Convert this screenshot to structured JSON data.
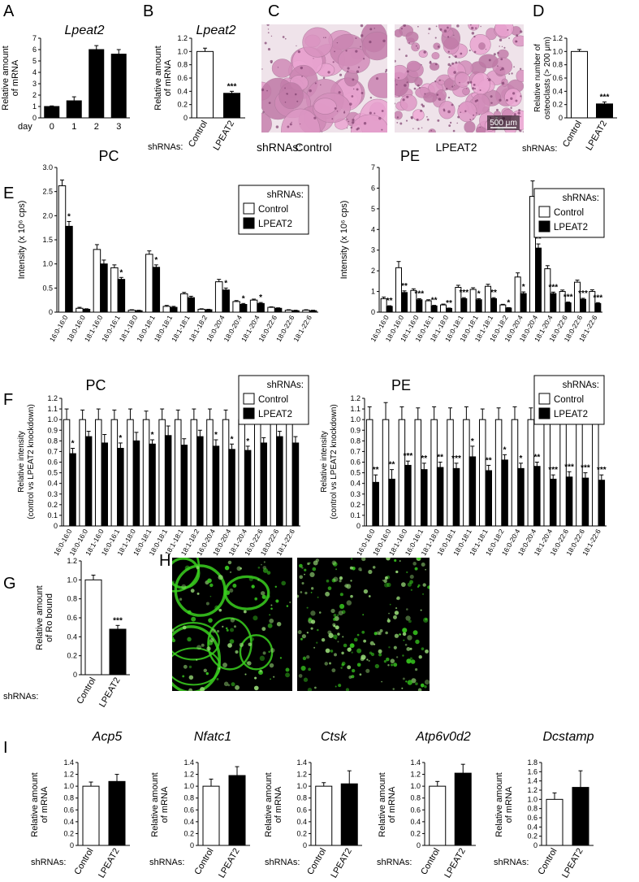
{
  "labels": {
    "panel_letters": {
      "A": "A",
      "B": "B",
      "C": "C",
      "D": "D",
      "E": "E",
      "F": "F",
      "G": "G",
      "H": "H",
      "I": "I"
    },
    "shrnas": "shRNAs:",
    "day": "day",
    "control": "Control",
    "lpeat2": "LPEAT2",
    "scale_bar": "500 μm"
  },
  "colors": {
    "control": "#ffffff",
    "lpeat2": "#000000",
    "stain": "#c98fb5",
    "green": "#39d01f"
  },
  "images": {
    "C": {
      "kind": "histology-staining",
      "panels": [
        "Control",
        "LPEAT2"
      ]
    },
    "H": {
      "kind": "fluorescence-green",
      "panels": [
        "left",
        "right"
      ]
    }
  },
  "chart_data": [
    {
      "id": "A",
      "type": "bar",
      "title": "Lpeat2",
      "title_italic": true,
      "ylabel": [
        "Relative amount",
        "of mRNA"
      ],
      "ylim": [
        0,
        7
      ],
      "yticks": [
        "0",
        "1",
        "2",
        "3",
        "4",
        "5",
        "6",
        "7"
      ],
      "xprefix": "day",
      "categories": [
        "0",
        "1",
        "2",
        "3"
      ],
      "series": [
        {
          "values": [
            1.0,
            1.5,
            6.0,
            5.6
          ],
          "errors": [
            0.05,
            0.35,
            0.35,
            0.4
          ],
          "color": "#000000"
        }
      ]
    },
    {
      "id": "B",
      "type": "bar",
      "title": "Lpeat2",
      "title_italic": true,
      "ylabel": [
        "Relative amount",
        "of mRNA"
      ],
      "ylim": [
        0,
        1.2
      ],
      "yticks": [
        "0",
        "0.2",
        "0.4",
        "0.6",
        "0.8",
        "1.0",
        "1.2"
      ],
      "categories": [
        "Control",
        "LPEAT2"
      ],
      "rotated_categories": true,
      "series": [
        {
          "values": [
            1.0,
            0.37
          ],
          "errors": [
            0.05,
            0.03
          ],
          "colors": [
            "#ffffff",
            "#000000"
          ]
        }
      ],
      "significance": [
        "",
        "***"
      ]
    },
    {
      "id": "D",
      "type": "bar",
      "title": "",
      "ylabel": [
        "Relative number of",
        "osteoclasts (> 200 μm)"
      ],
      "ylim": [
        0,
        1.2
      ],
      "yticks": [
        "0",
        "0.2",
        "0.4",
        "0.6",
        "0.8",
        "1.0",
        "1.2"
      ],
      "categories": [
        "Control",
        "LPEAT2"
      ],
      "rotated_categories": true,
      "series": [
        {
          "values": [
            1.0,
            0.21
          ],
          "errors": [
            0.03,
            0.03
          ],
          "colors": [
            "#ffffff",
            "#000000"
          ]
        }
      ],
      "significance": [
        "",
        "***"
      ]
    },
    {
      "id": "E_PC",
      "type": "bar",
      "title": "PC",
      "ylabel": [
        "Intensity (x 10⁶ cps)"
      ],
      "ylim": [
        0,
        3.0
      ],
      "yticks": [
        "0",
        "0.5",
        "1.0",
        "1.5",
        "2.0",
        "2.5",
        "3.0"
      ],
      "categories": [
        "16:0-16:0",
        "18:0-16:0",
        "18:1-16:0",
        "16:0-16:1",
        "18:1-18:0",
        "16:0-18:1",
        "18:0-18:1",
        "18:1-18:1",
        "18:1-18:2",
        "16:0-20:4",
        "18:0-20:4",
        "18:1-20:4",
        "16:0-22:6",
        "18:0-22:6",
        "18:1-22:6"
      ],
      "legend_title": "shRNAs:",
      "series": [
        {
          "name": "Control",
          "color": "#ffffff",
          "values": [
            2.62,
            0.08,
            1.3,
            0.92,
            0.04,
            1.2,
            0.12,
            0.38,
            0.06,
            0.63,
            0.22,
            0.25,
            0.1,
            0.04,
            0.04
          ],
          "errors": [
            0.12,
            0.02,
            0.1,
            0.06,
            0.01,
            0.07,
            0.02,
            0.03,
            0.01,
            0.05,
            0.02,
            0.02,
            0.01,
            0.01,
            0.01
          ]
        },
        {
          "name": "LPEAT2",
          "color": "#000000",
          "values": [
            1.78,
            0.06,
            1.0,
            0.68,
            0.03,
            0.93,
            0.1,
            0.3,
            0.05,
            0.46,
            0.16,
            0.18,
            0.08,
            0.03,
            0.03
          ],
          "errors": [
            0.1,
            0.01,
            0.08,
            0.04,
            0.01,
            0.05,
            0.02,
            0.03,
            0.01,
            0.04,
            0.02,
            0.02,
            0.01,
            0.01,
            0.01
          ]
        }
      ],
      "significance": [
        "*",
        "",
        "",
        "*",
        "",
        "*",
        "",
        "",
        "",
        "*",
        "*",
        "*",
        "",
        "",
        ""
      ]
    },
    {
      "id": "E_PE",
      "type": "bar",
      "title": "PE",
      "ylabel": [
        "Intensity (x 10⁶ cps)"
      ],
      "ylim": [
        0,
        7
      ],
      "yticks": [
        "0",
        "1",
        "2",
        "3",
        "4",
        "5",
        "6",
        "7"
      ],
      "categories": [
        "16:0-16:0",
        "18:0-16:0",
        "18:1-16:0",
        "16:0-16:1",
        "18:1-18:0",
        "16:0-18:1",
        "18:0-18:1",
        "18:1-18:1",
        "16:0-18:2",
        "16:0-20:4",
        "18:0-20:4",
        "18:1-20:4",
        "16:0-22:6",
        "18:0-22:6",
        "18:1-22:6"
      ],
      "legend_title": "shRNAs:",
      "series": [
        {
          "name": "Control",
          "color": "#ffffff",
          "values": [
            0.65,
            2.15,
            1.05,
            0.55,
            0.35,
            1.2,
            1.1,
            1.25,
            0.35,
            1.7,
            5.6,
            2.1,
            1.0,
            1.45,
            1.0
          ],
          "errors": [
            0.08,
            0.3,
            0.08,
            0.05,
            0.04,
            0.1,
            0.08,
            0.1,
            0.03,
            0.2,
            0.75,
            0.15,
            0.07,
            0.1,
            0.08
          ]
        },
        {
          "name": "LPEAT2",
          "color": "#000000",
          "values": [
            0.28,
            0.95,
            0.6,
            0.3,
            0.18,
            0.65,
            0.6,
            0.65,
            0.2,
            0.9,
            3.1,
            0.9,
            0.45,
            0.62,
            0.42
          ],
          "errors": [
            0.03,
            0.08,
            0.05,
            0.03,
            0.02,
            0.05,
            0.05,
            0.05,
            0.02,
            0.08,
            0.2,
            0.07,
            0.04,
            0.05,
            0.04
          ]
        }
      ],
      "significance": [
        "**",
        "**",
        "***",
        "**",
        "**",
        "***",
        "*",
        "**",
        "*",
        "*",
        "**",
        "***",
        "***",
        "***",
        "***"
      ]
    },
    {
      "id": "F_PC",
      "type": "bar",
      "title": "PC",
      "ylabel": [
        "Relative intensity",
        "(control vs LPEAT2 knockdown)"
      ],
      "ylim": [
        0,
        1.2
      ],
      "yticks": [
        "0",
        "0.1",
        "0.2",
        "0.3",
        "0.4",
        "0.5",
        "0.6",
        "0.7",
        "0.8",
        "0.9",
        "1.0",
        "1.1",
        "1.2"
      ],
      "categories": [
        "16:0-16:0",
        "18:0-16:0",
        "18:1-16:0",
        "16:0-16:1",
        "18:1-18:0",
        "16:0-18:1",
        "18:0-18:1",
        "18:1-18:1",
        "18:1-18:2",
        "16:0-20:4",
        "18:0-20:4",
        "18:1-20:4",
        "16:0-22:6",
        "18:0-22:6",
        "18:1-22:6"
      ],
      "legend_title": "shRNAs:",
      "series": [
        {
          "name": "Control",
          "color": "#ffffff",
          "values": [
            1,
            1,
            1,
            1,
            1,
            1,
            1,
            1,
            1,
            1,
            1,
            1,
            1,
            1,
            1
          ],
          "errors": [
            0.1,
            0.09,
            0.1,
            0.09,
            0.1,
            0.08,
            0.1,
            0.09,
            0.1,
            0.1,
            0.09,
            0.08,
            0.09,
            0.08,
            0.1
          ]
        },
        {
          "name": "LPEAT2",
          "color": "#000000",
          "values": [
            0.68,
            0.84,
            0.78,
            0.73,
            0.8,
            0.77,
            0.85,
            0.76,
            0.84,
            0.75,
            0.72,
            0.71,
            0.78,
            0.84,
            0.78
          ],
          "errors": [
            0.05,
            0.05,
            0.08,
            0.05,
            0.08,
            0.04,
            0.09,
            0.06,
            0.06,
            0.06,
            0.05,
            0.04,
            0.05,
            0.05,
            0.06
          ]
        }
      ],
      "significance": [
        "*",
        "",
        "",
        "*",
        "",
        "*",
        "",
        "",
        "",
        "*",
        "*",
        "*",
        "",
        "",
        ""
      ]
    },
    {
      "id": "F_PE",
      "type": "bar",
      "title": "PE",
      "ylabel": [
        "Relative intensity",
        "(control vs LPEAT2 knockdown)"
      ],
      "ylim": [
        0,
        1.2
      ],
      "yticks": [
        "0",
        "0.1",
        "0.2",
        "0.3",
        "0.4",
        "0.5",
        "0.6",
        "0.7",
        "0.8",
        "0.9",
        "1.0",
        "1.1",
        "1.2"
      ],
      "categories": [
        "16:0-16:0",
        "18:0-16:0",
        "18:1-16:0",
        "16:0-16:1",
        "18:1-18:0",
        "16:0-18:1",
        "18:0-18:1",
        "18:1-18:1",
        "16:0-18:2",
        "16:0-20:4",
        "18:0-20:4",
        "18:1-20:4",
        "16:0-22:6",
        "18:0-22:6",
        "18:1-22:6"
      ],
      "legend_title": "shRNAs:",
      "series": [
        {
          "name": "Control",
          "color": "#ffffff",
          "values": [
            1,
            1,
            1,
            1,
            1,
            1,
            1,
            1,
            1,
            1,
            1,
            1,
            1,
            1,
            1
          ],
          "errors": [
            0.12,
            0.16,
            0.12,
            0.11,
            0.12,
            0.11,
            0.12,
            0.1,
            0.11,
            0.12,
            0.11,
            0.12,
            0.1,
            0.12,
            0.12
          ]
        },
        {
          "name": "LPEAT2",
          "color": "#000000",
          "values": [
            0.41,
            0.44,
            0.57,
            0.53,
            0.55,
            0.54,
            0.65,
            0.52,
            0.62,
            0.54,
            0.56,
            0.44,
            0.46,
            0.45,
            0.43
          ],
          "errors": [
            0.07,
            0.09,
            0.04,
            0.06,
            0.05,
            0.05,
            0.1,
            0.05,
            0.05,
            0.05,
            0.04,
            0.04,
            0.05,
            0.05,
            0.05
          ]
        }
      ],
      "significance": [
        "**",
        "**",
        "***",
        "**",
        "**",
        "***",
        "*",
        "**",
        "*",
        "*",
        "**",
        "***",
        "***",
        "***",
        "***"
      ]
    },
    {
      "id": "G",
      "type": "bar",
      "title": "",
      "ylabel": [
        "Relative amount",
        "of Ro bound"
      ],
      "ylim": [
        0,
        1.2
      ],
      "yticks": [
        "0",
        "0.2",
        "0.4",
        "0.6",
        "0.8",
        "1.0",
        "1.2"
      ],
      "categories": [
        "Control",
        "LPEAT2"
      ],
      "rotated_categories": true,
      "series": [
        {
          "values": [
            1.0,
            0.48
          ],
          "errors": [
            0.05,
            0.04
          ],
          "colors": [
            "#ffffff",
            "#000000"
          ]
        }
      ],
      "significance": [
        "",
        "***"
      ]
    },
    {
      "id": "I_Acp5",
      "type": "bar",
      "title": "Acp5",
      "title_italic": true,
      "ylabel": [
        "Relative amount",
        "of mRNA"
      ],
      "ylim": [
        0,
        1.4
      ],
      "yticks": [
        "0",
        "0.2",
        "0.4",
        "0.6",
        "0.8",
        "1.0",
        "1.2",
        "1.4"
      ],
      "categories": [
        "Control",
        "LPEAT2"
      ],
      "rotated_categories": true,
      "series": [
        {
          "values": [
            1.0,
            1.08
          ],
          "errors": [
            0.07,
            0.12
          ],
          "colors": [
            "#ffffff",
            "#000000"
          ]
        }
      ]
    },
    {
      "id": "I_Nfatc1",
      "type": "bar",
      "title": "Nfatc1",
      "title_italic": true,
      "ylabel": [
        "Relative amount",
        "of mRNA"
      ],
      "ylim": [
        0,
        1.4
      ],
      "yticks": [
        "0",
        "0.2",
        "0.4",
        "0.6",
        "0.8",
        "1.0",
        "1.2",
        "1.4"
      ],
      "categories": [
        "Control",
        "LPEAT2"
      ],
      "rotated_categories": true,
      "series": [
        {
          "values": [
            1.0,
            1.18
          ],
          "errors": [
            0.12,
            0.15
          ],
          "colors": [
            "#ffffff",
            "#000000"
          ]
        }
      ]
    },
    {
      "id": "I_Ctsk",
      "type": "bar",
      "title": "Ctsk",
      "title_italic": true,
      "ylabel": [
        "Relative amount",
        "of mRNA"
      ],
      "ylim": [
        0,
        1.4
      ],
      "yticks": [
        "0",
        "0.2",
        "0.4",
        "0.6",
        "0.8",
        "1.0",
        "1.2",
        "1.4"
      ],
      "categories": [
        "Control",
        "LPEAT2"
      ],
      "rotated_categories": true,
      "series": [
        {
          "values": [
            1.0,
            1.04
          ],
          "errors": [
            0.06,
            0.22
          ],
          "colors": [
            "#ffffff",
            "#000000"
          ]
        }
      ]
    },
    {
      "id": "I_Atp6v0d2",
      "type": "bar",
      "title": "Atp6v0d2",
      "title_italic": true,
      "ylabel": [
        "Relative amount",
        "of mRNA"
      ],
      "ylim": [
        0,
        1.4
      ],
      "yticks": [
        "0",
        "0.2",
        "0.4",
        "0.6",
        "0.8",
        "1.0",
        "1.2",
        "1.4"
      ],
      "categories": [
        "Control",
        "LPEAT2"
      ],
      "rotated_categories": true,
      "series": [
        {
          "values": [
            1.0,
            1.22
          ],
          "errors": [
            0.08,
            0.15
          ],
          "colors": [
            "#ffffff",
            "#000000"
          ]
        }
      ]
    },
    {
      "id": "I_Dcstamp",
      "type": "bar",
      "title": "Dcstamp",
      "title_italic": true,
      "ylabel": [
        "Relative amount",
        "of mRNA"
      ],
      "ylim": [
        0,
        1.8
      ],
      "yticks": [
        "0",
        "0.2",
        "0.4",
        "0.6",
        "0.8",
        "1.0",
        "1.2",
        "1.4",
        "1.6",
        "1.8"
      ],
      "categories": [
        "Control",
        "LPEAT2"
      ],
      "rotated_categories": true,
      "series": [
        {
          "values": [
            1.0,
            1.26
          ],
          "errors": [
            0.14,
            0.36
          ],
          "colors": [
            "#ffffff",
            "#000000"
          ]
        }
      ]
    }
  ]
}
